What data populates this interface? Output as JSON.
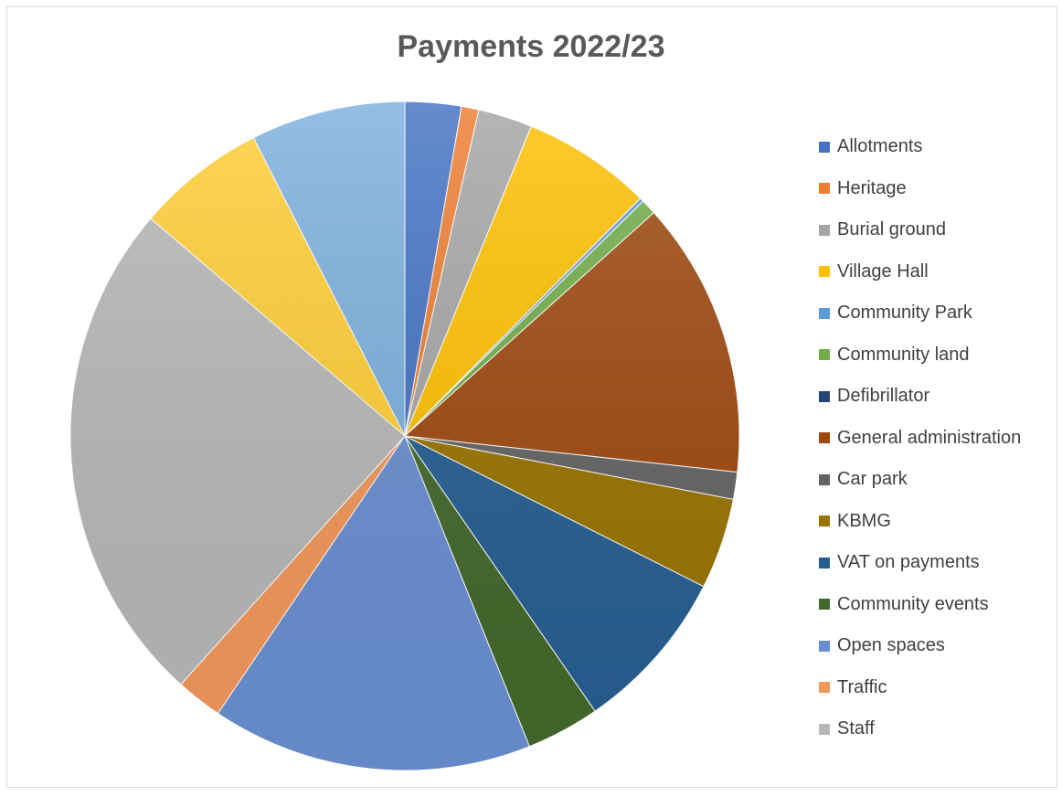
{
  "chart_data": {
    "type": "pie",
    "title": "Payments 2022/23",
    "legend_position": "right",
    "series": [
      {
        "slices": [
          {
            "label": "Allotments",
            "value": 2.9,
            "color": "#4472C4"
          },
          {
            "label": "Heritage",
            "value": 0.9,
            "color": "#ED7D31"
          },
          {
            "label": "Burial ground",
            "value": 2.8,
            "color": "#A5A5A5"
          },
          {
            "label": "Village Hall",
            "value": 6.7,
            "color": "#FFC000"
          },
          {
            "label": "Community Park",
            "value": 0.2,
            "color": "#5B9BD5"
          },
          {
            "label": "Community land",
            "value": 0.8,
            "color": "#70AD47"
          },
          {
            "label": "Defibrillator",
            "value": 0.0,
            "color": "#264478"
          },
          {
            "label": "General administration",
            "value": 14.3,
            "color": "#9E480E"
          },
          {
            "label": "Car park",
            "value": 1.4,
            "color": "#636363"
          },
          {
            "label": "KBMG",
            "value": 4.7,
            "color": "#997300"
          },
          {
            "label": "VAT on payments",
            "value": 8.5,
            "color": "#255E91"
          },
          {
            "label": "Community events",
            "value": 3.8,
            "color": "#43682B"
          },
          {
            "label": "Open spaces",
            "value": 16.6,
            "color": "#698ED0"
          },
          {
            "label": "Traffic",
            "value": 2.4,
            "color": "#F1975A"
          },
          {
            "label": "Staff",
            "value": 26.3,
            "color": "#B7B7B7"
          },
          {
            "label": "",
            "value": 6.7,
            "color": "#FFCD33"
          },
          {
            "label": "",
            "value": 8.0,
            "color": "#7CAFDD"
          }
        ]
      }
    ]
  }
}
